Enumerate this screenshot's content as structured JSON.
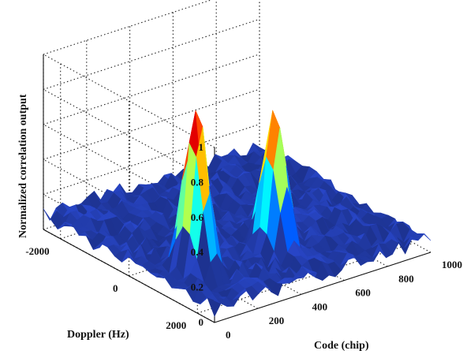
{
  "chart_data": {
    "type": "surface",
    "title": "",
    "xlabel": "Code (chip)",
    "ylabel": "Doppler (Hz)",
    "zlabel": "Normalized correlation output",
    "x_ticks": [
      "0",
      "200",
      "400",
      "600",
      "800",
      "1000"
    ],
    "y_ticks": [
      "-2000",
      "0",
      "2000"
    ],
    "z_ticks": [
      "0",
      "0.2",
      "0.4",
      "0.6",
      "0.8",
      "1"
    ],
    "xlim": [
      0,
      1000
    ],
    "ylim": [
      -2500,
      2500
    ],
    "zlim": [
      0,
      1
    ],
    "grid": true,
    "colormap": "jet",
    "noise_floor": 0.1,
    "peaks": [
      {
        "code": 170,
        "doppler": 900,
        "value": 1.0
      },
      {
        "code": 500,
        "doppler": 1100,
        "value": 0.87
      }
    ],
    "colors": [
      "#00008f",
      "#0000ff",
      "#00ffff",
      "#ffff00",
      "#ff0000",
      "#800000"
    ]
  }
}
